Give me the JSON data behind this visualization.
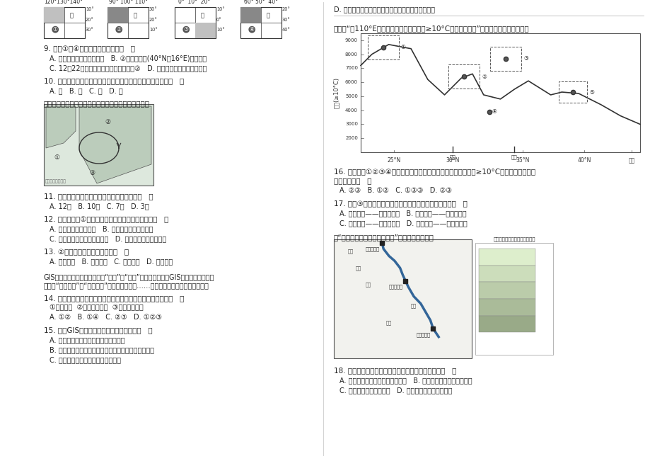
{
  "page_bg": "#ffffff",
  "text_color": "#222222",
  "q9_text": "9. 图中①～④四地的说法正确的是（   ）",
  "q9_A": "A. 全部位于东半球、低纬度   B. ②地位于北京(40°N、16°E)的东南方",
  "q9_C": "C. 12月22日，正午太阳高度角最大的是②   D. 均有太阳直射和极昼夜现象",
  "q10_text": "10. 四幅图中阴影部分所表示的经纬线方格内，面积最大的是（   ）",
  "q10_ABCD": "A. 甲   B. 乙   C. 丙   D. 丁",
  "ocean_intro": "该某大洋某季节图海洋流分布示意图。回答下面小题。",
  "q11_text": "11. 图示洋流环流系统最有可能出现的月份是（   ）",
  "q11_ABCD": "A. 12月   B. 10月   C. 7月   D. 3月",
  "q12_text": "12. 据图判断，①半岛东部沿海地区该季气候特点是（   ）",
  "q12_A": "A. 进入雨季，高温多雨   B. 受山地影响，低温干燥",
  "q12_C": "C. 受西北信风影响，高温干燥   D. 受季风影响，高温干燥",
  "q13_text": "13. ②海区洋流自流的主动力是（   ）",
  "q13_ABCD": "A. 西南季风   B. 东南季风   C. 西北季风   D. 东南信风",
  "gis_line1": "GIS可以像传统地图一样，解决“地点”、“状况”的有关查询，但GIS能进行势态分析，",
  "gis_line2": "复杂的“模式分析”和“虚拟模拟”进行预测性分析……结合上述材料，回答下面小题。",
  "q14_text": "14. 国家气象局每天在电视新闻中提供的卫星云图主要使用了（   ）",
  "q14_note": "①遥感技术  ②地理信息系统  ③全球定位技术",
  "q14_ABCD": "A. ①②   B. ①④   C. ②③   D. ①②③",
  "q15_text": "15. 如果GIS技术用来监测森林火灾，可以（   ）",
  "q15_A": "A. 用来分析、判断引起森林火灾的原因",
  "q15_B": "B. 用来预测森林火灾的发生地点和火灾所用的大致时间",
  "q15_C": "C. 用来预测森林火灾灬后造成的后果",
  "right_D_text": "D. 用来预测分析火势走向的方向，尽快制定灭火方案",
  "temp_intro": "下面是“沿110°E经线不同纬度日平均气温≥10°C的积温曲线图”。读图，回答下面小题。",
  "q16_text": "16. 图中数码①②③④四个地址所跨纬度相同，其中，日平均气温≥10°C积温随纬度变化最",
  "q16_text2": "大的一组是（   ）",
  "q16_ABCD": "A. ②③   B. ①②   C. ①③③   D. ②③",
  "q17_text": "17. 图中③处所在地区与适宜发展的农作物搭配正确的是（   ）",
  "q17_A": "A. 青藏地区——青稿、豌豆   B. 北方地区——小麦、甜菜",
  "q17_C": "C. 西北地区——谷子、棒花   D. 南方地区——水稻、油菜",
  "jinsha_intro": "读“金沙江下游水能资源开发图”，回答下面小题。",
  "q18_text": "18. 金沙江下游适于水电梯级开发的主要自然原因是（   ）",
  "q18_A": "A. 华中地区能源缺乏，电力缺口大   B. 低地势阶梯交界处，落差大",
  "q18_C": "C. 径流量大且季节变化大   D. 地质条件稳定，适于建堤"
}
